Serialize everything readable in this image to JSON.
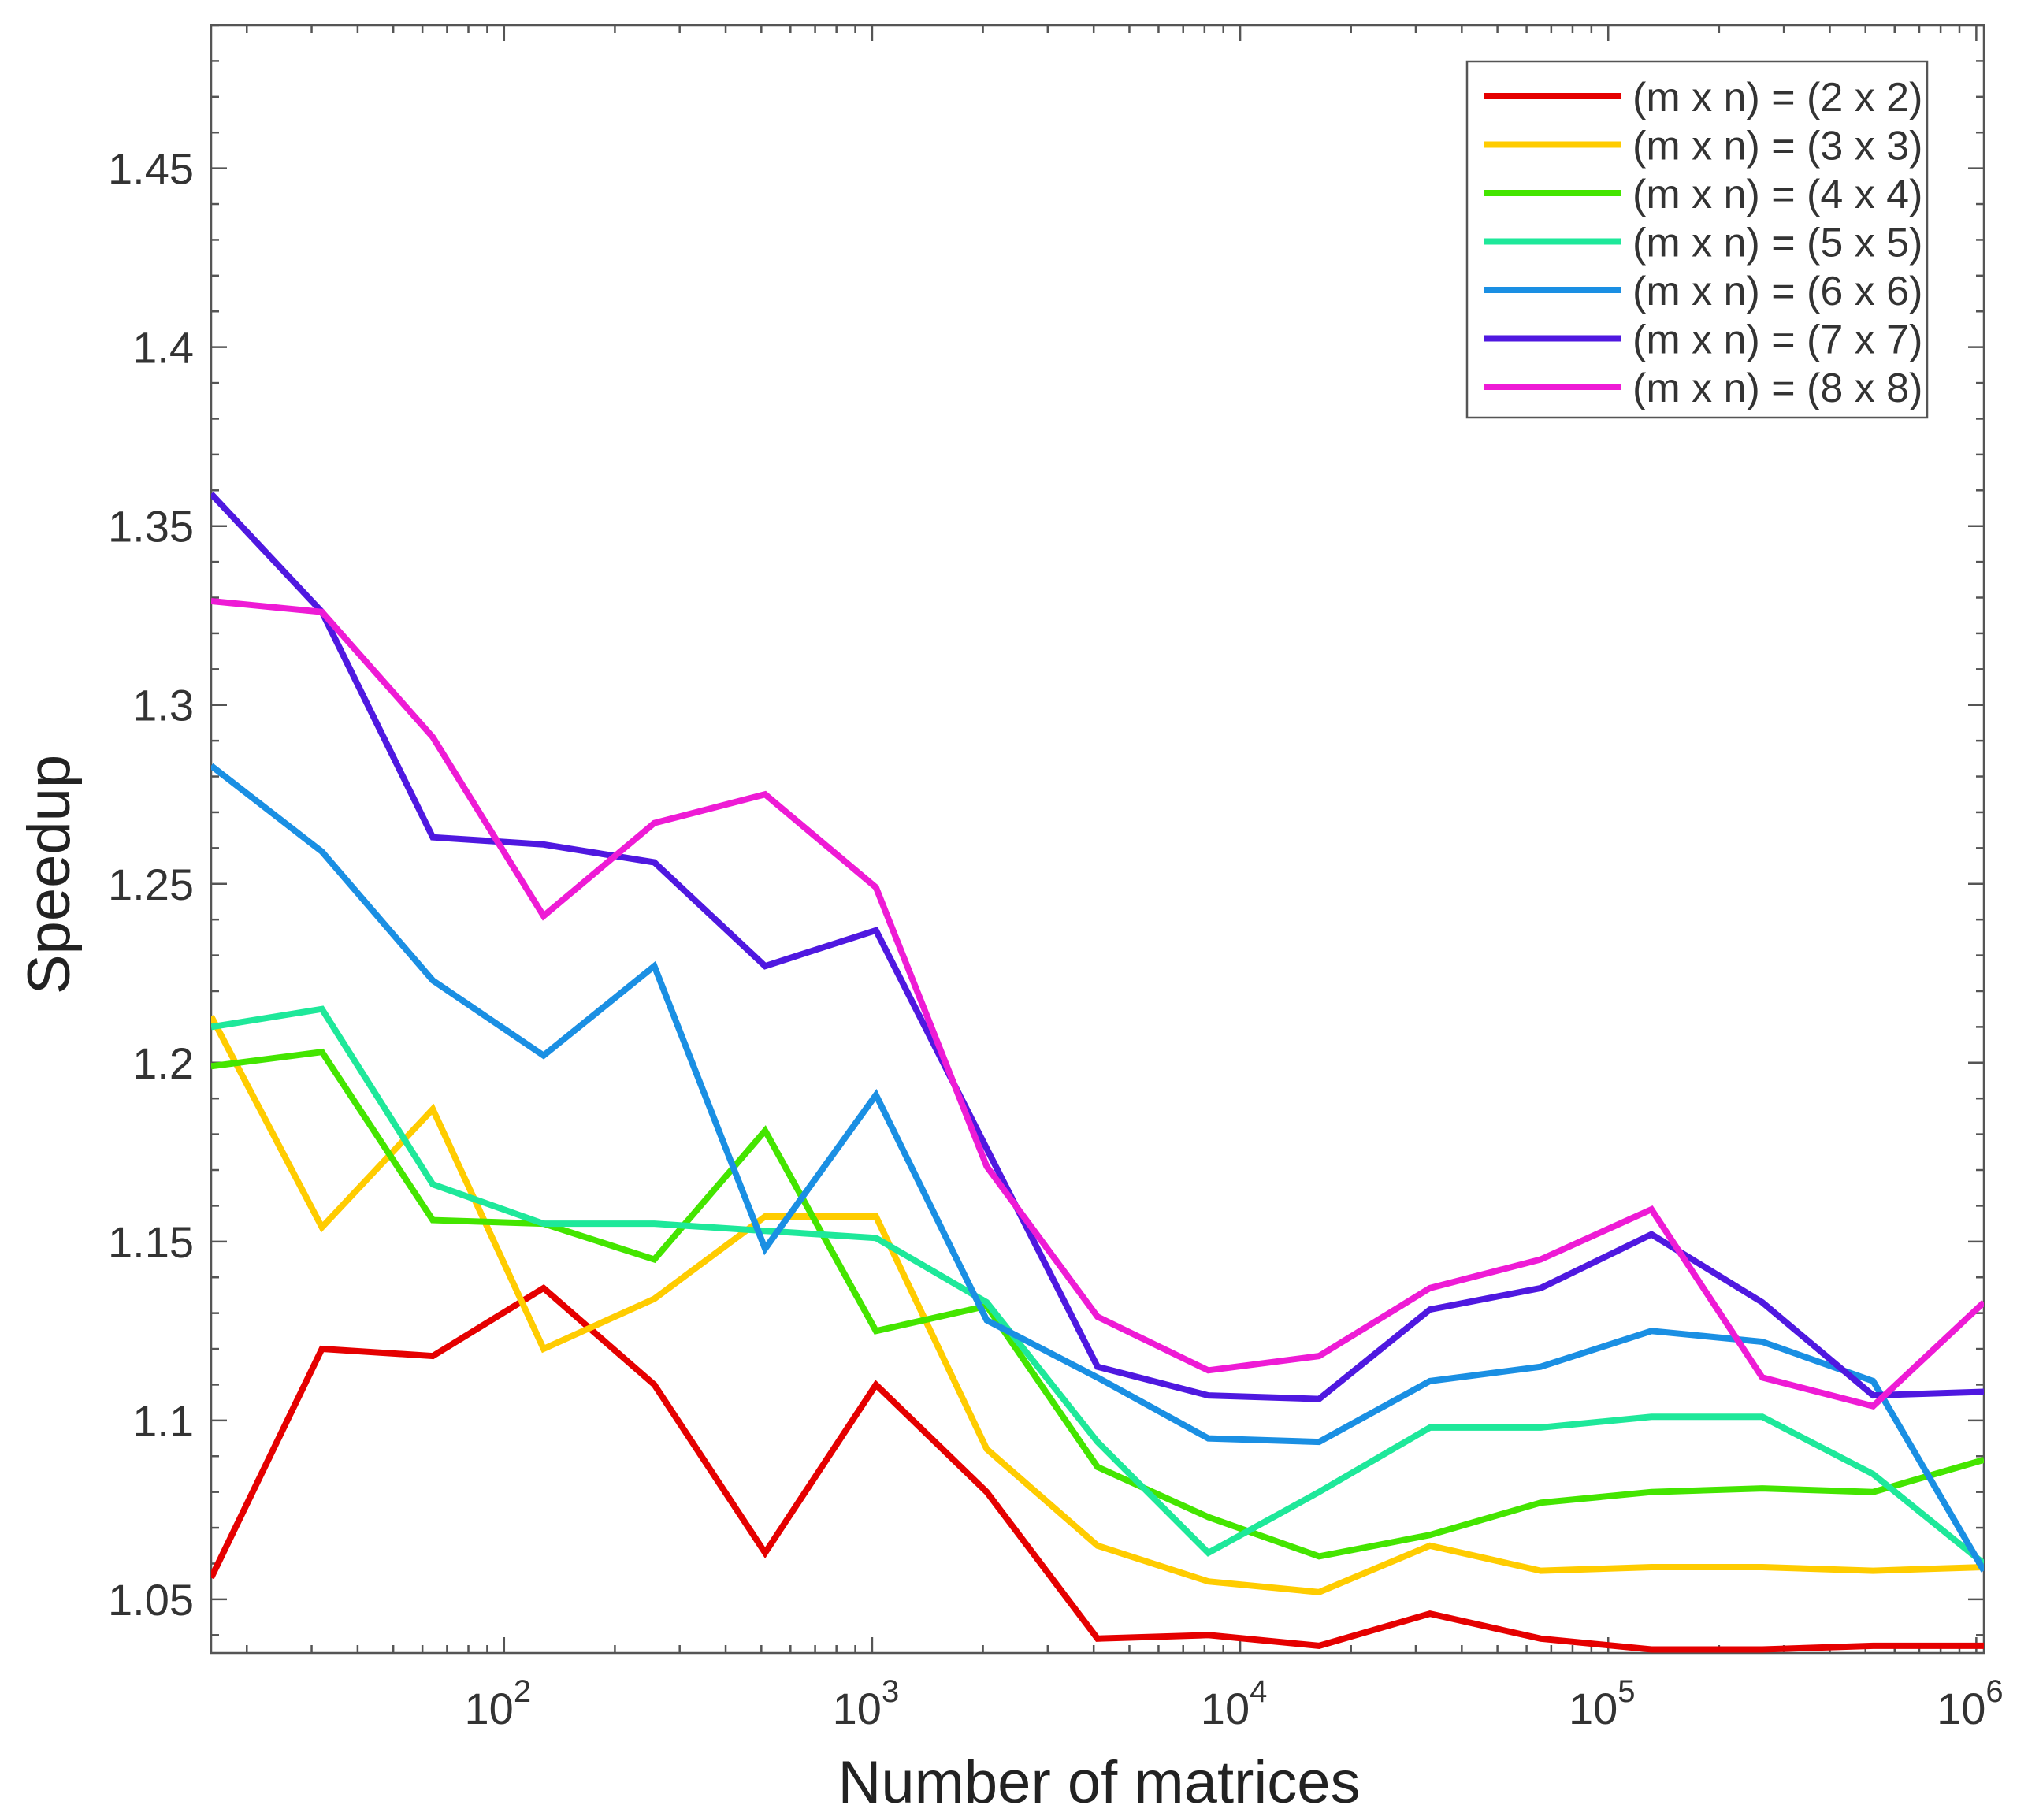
{
  "chart_data": {
    "type": "line",
    "title": "",
    "xlabel": "Number of matrices",
    "ylabel": "Speedup",
    "xscale": "log",
    "xlim": [
      16,
      1048576
    ],
    "ylim": [
      1.035,
      1.49
    ],
    "grid": false,
    "legend_position": "top-right",
    "x": [
      16,
      32,
      64,
      128,
      256,
      512,
      1024,
      2048,
      4096,
      8192,
      16384,
      32768,
      65536,
      131072,
      262144,
      524288,
      1048576
    ],
    "x_tick_labels": [
      {
        "value": 100,
        "base": "10",
        "exp": "2"
      },
      {
        "value": 1000,
        "base": "10",
        "exp": "3"
      },
      {
        "value": 10000,
        "base": "10",
        "exp": "4"
      },
      {
        "value": 100000,
        "base": "10",
        "exp": "5"
      },
      {
        "value": 1000000,
        "base": "10",
        "exp": "6"
      }
    ],
    "y_ticks": [
      1.05,
      1.1,
      1.15,
      1.2,
      1.25,
      1.3,
      1.35,
      1.4,
      1.45
    ],
    "y_tick_labels": [
      "1.05",
      "1.1",
      "1.15",
      "1.2",
      "1.25",
      "1.3",
      "1.35",
      "1.4",
      "1.45"
    ],
    "series": [
      {
        "name": "(m x n) = (2 x 2)",
        "color": "#e50000",
        "values": [
          1.056,
          1.12,
          1.118,
          1.137,
          1.11,
          1.063,
          1.11,
          1.08,
          1.039,
          1.04,
          1.037,
          1.046,
          1.039,
          1.036,
          1.036,
          1.037,
          1.037
        ]
      },
      {
        "name": "(m x n) = (3 x 3)",
        "color": "#ffcc00",
        "values": [
          1.213,
          1.154,
          1.187,
          1.12,
          1.134,
          1.157,
          1.157,
          1.092,
          1.065,
          1.055,
          1.052,
          1.065,
          1.058,
          1.059,
          1.059,
          1.058,
          1.059
        ]
      },
      {
        "name": "(m x n) = (4 x 4)",
        "color": "#44e500",
        "values": [
          1.199,
          1.203,
          1.156,
          1.155,
          1.145,
          1.181,
          1.125,
          1.132,
          1.087,
          1.073,
          1.062,
          1.068,
          1.077,
          1.08,
          1.081,
          1.08,
          1.089
        ]
      },
      {
        "name": "(m x n) = (5 x 5)",
        "color": "#1ee89a",
        "values": [
          1.21,
          1.215,
          1.166,
          1.155,
          1.155,
          1.153,
          1.151,
          1.133,
          1.094,
          1.063,
          1.08,
          1.098,
          1.098,
          1.101,
          1.101,
          1.085,
          1.06
        ]
      },
      {
        "name": "(m x n) = (6 x 6)",
        "color": "#1a8fe3",
        "values": [
          1.283,
          1.259,
          1.223,
          1.202,
          1.227,
          1.148,
          1.191,
          1.128,
          1.112,
          1.095,
          1.094,
          1.111,
          1.115,
          1.125,
          1.122,
          1.111,
          1.058
        ]
      },
      {
        "name": "(m x n) = (7 x 7)",
        "color": "#4f18e0",
        "values": [
          1.359,
          1.326,
          1.263,
          1.261,
          1.256,
          1.227,
          1.237,
          1.176,
          1.115,
          1.107,
          1.106,
          1.131,
          1.137,
          1.152,
          1.133,
          1.107,
          1.108
        ]
      },
      {
        "name": "(m x n) = (8 x 8)",
        "color": "#ee1bd5",
        "values": [
          1.329,
          1.326,
          1.291,
          1.241,
          1.267,
          1.275,
          1.249,
          1.171,
          1.129,
          1.114,
          1.118,
          1.137,
          1.145,
          1.159,
          1.112,
          1.104,
          1.133
        ]
      }
    ]
  }
}
